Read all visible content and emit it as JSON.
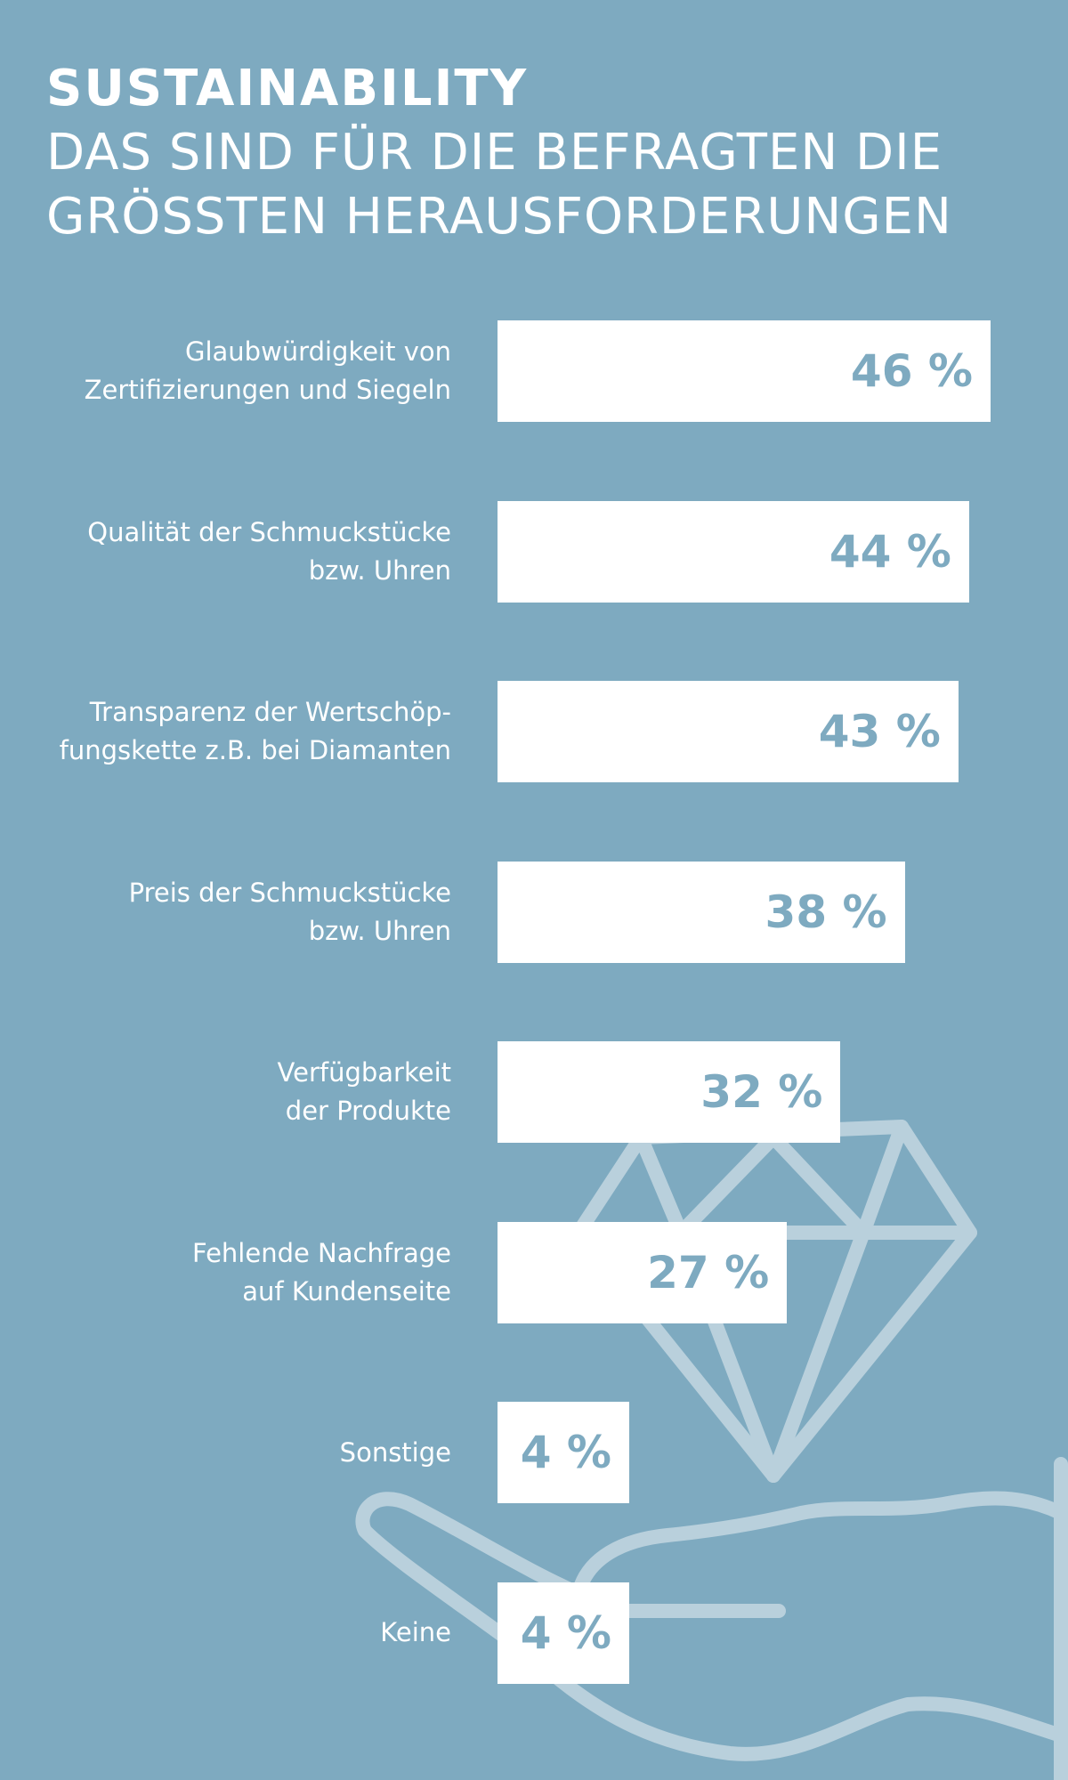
{
  "header": {
    "kicker": "SUSTAINABILITY",
    "title_line1": "DAS SIND FÜR DIE BEFRAGTEN DIE",
    "title_line2": "GRÖSSTEN HERAUSFORDERUNGEN"
  },
  "colors": {
    "background": "#7eaac0",
    "bar": "#ffffff",
    "value_text": "#7eaac0",
    "illustration_stroke": "#b9d0dc"
  },
  "decoration": {
    "icons": [
      "diamond-icon",
      "hand-icon"
    ]
  },
  "chart_data": {
    "type": "bar",
    "orientation": "horizontal",
    "title": "DAS SIND FÜR DIE BEFRAGTEN DIE GRÖSSTEN HERAUSFORDERUNGEN",
    "unit": "%",
    "xlim": [
      0,
      46
    ],
    "grid": false,
    "categories": [
      [
        "Glaubwürdigkeit von",
        "Zertifizierungen und Siegeln"
      ],
      [
        "Qualität der Schmuckstücke",
        "bzw. Uhren"
      ],
      [
        "Transparenz der Wertschöp-",
        "fungskette z.B. bei Diamanten"
      ],
      [
        "Preis der Schmuckstücke",
        "bzw. Uhren"
      ],
      [
        "Verfügbarkeit",
        "der Produkte"
      ],
      [
        "Fehlende Nachfrage",
        "auf Kundenseite"
      ],
      [
        "Sonstige"
      ],
      [
        "Keine"
      ]
    ],
    "values": [
      46,
      44,
      43,
      38,
      32,
      27,
      4,
      4
    ],
    "value_labels": [
      "46 %",
      "44 %",
      "43 %",
      "38 %",
      "32 %",
      "27 %",
      "4 %",
      "4 %"
    ]
  }
}
